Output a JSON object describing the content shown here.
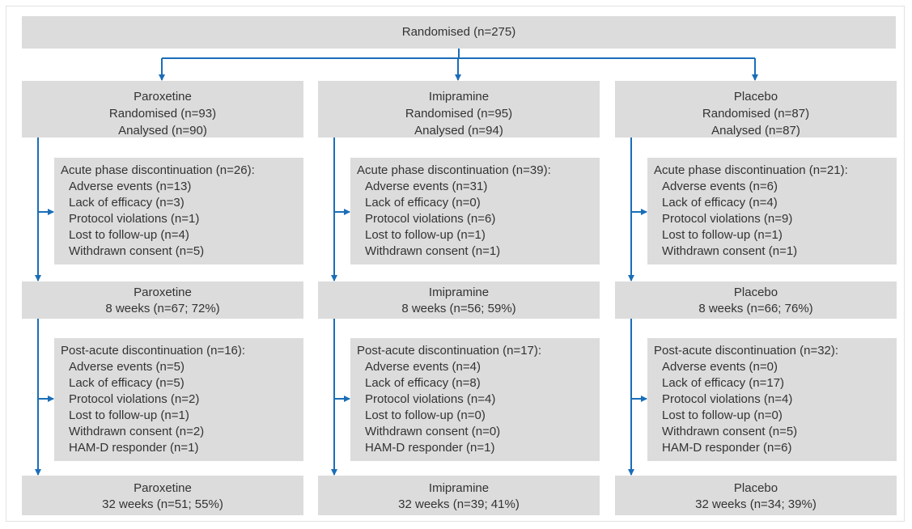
{
  "root": {
    "label": "Randomised (n=275)"
  },
  "arms": [
    {
      "top": [
        "Paroxetine",
        "Randomised (n=93)",
        "Analysed (n=90)"
      ],
      "acute": [
        "Acute phase discontinuation (n=26):",
        "Adverse events (n=13)",
        "Lack of efficacy (n=3)",
        "Protocol violations (n=1)",
        "Lost to follow-up (n=4)",
        "Withdrawn consent (n=5)"
      ],
      "week8": [
        "Paroxetine",
        "8 weeks (n=67; 72%)"
      ],
      "post": [
        "Post-acute discontinuation (n=16):",
        "Adverse events (n=5)",
        "Lack of efficacy (n=5)",
        "Protocol violations (n=2)",
        "Lost to follow-up (n=1)",
        "Withdrawn consent (n=2)",
        "HAM-D responder (n=1)"
      ],
      "week32": [
        "Paroxetine",
        "32 weeks (n=51; 55%)"
      ]
    },
    {
      "top": [
        "Imipramine",
        "Randomised (n=95)",
        "Analysed (n=94)"
      ],
      "acute": [
        "Acute phase discontinuation (n=39):",
        "Adverse events (n=31)",
        "Lack of efficacy (n=0)",
        "Protocol violations (n=6)",
        "Lost to follow-up (n=1)",
        "Withdrawn consent (n=1)"
      ],
      "week8": [
        "Imipramine",
        "8 weeks (n=56; 59%)"
      ],
      "post": [
        "Post-acute discontinuation (n=17):",
        "Adverse events (n=4)",
        "Lack of efficacy (n=8)",
        "Protocol violations (n=4)",
        "Lost to follow-up (n=0)",
        "Withdrawn consent (n=0)",
        "HAM-D responder (n=1)"
      ],
      "week32": [
        "Imipramine",
        "32 weeks (n=39; 41%)"
      ]
    },
    {
      "top": [
        "Placebo",
        "Randomised (n=87)",
        "Analysed (n=87)"
      ],
      "acute": [
        "Acute phase discontinuation (n=21):",
        "Adverse events (n=6)",
        "Lack of efficacy (n=4)",
        "Protocol violations (n=9)",
        "Lost to follow-up (n=1)",
        "Withdrawn consent (n=1)"
      ],
      "week8": [
        "Placebo",
        "8 weeks (n=66; 76%)"
      ],
      "post": [
        "Post-acute discontinuation (n=32):",
        "Adverse events (n=0)",
        "Lack of efficacy (n=17)",
        "Protocol violations (n=4)",
        "Lost to follow-up (n=0)",
        "Withdrawn consent (n=5)",
        "HAM-D responder (n=6)"
      ],
      "week32": [
        "Placebo",
        "32 weeks (n=34; 39%)"
      ]
    }
  ]
}
